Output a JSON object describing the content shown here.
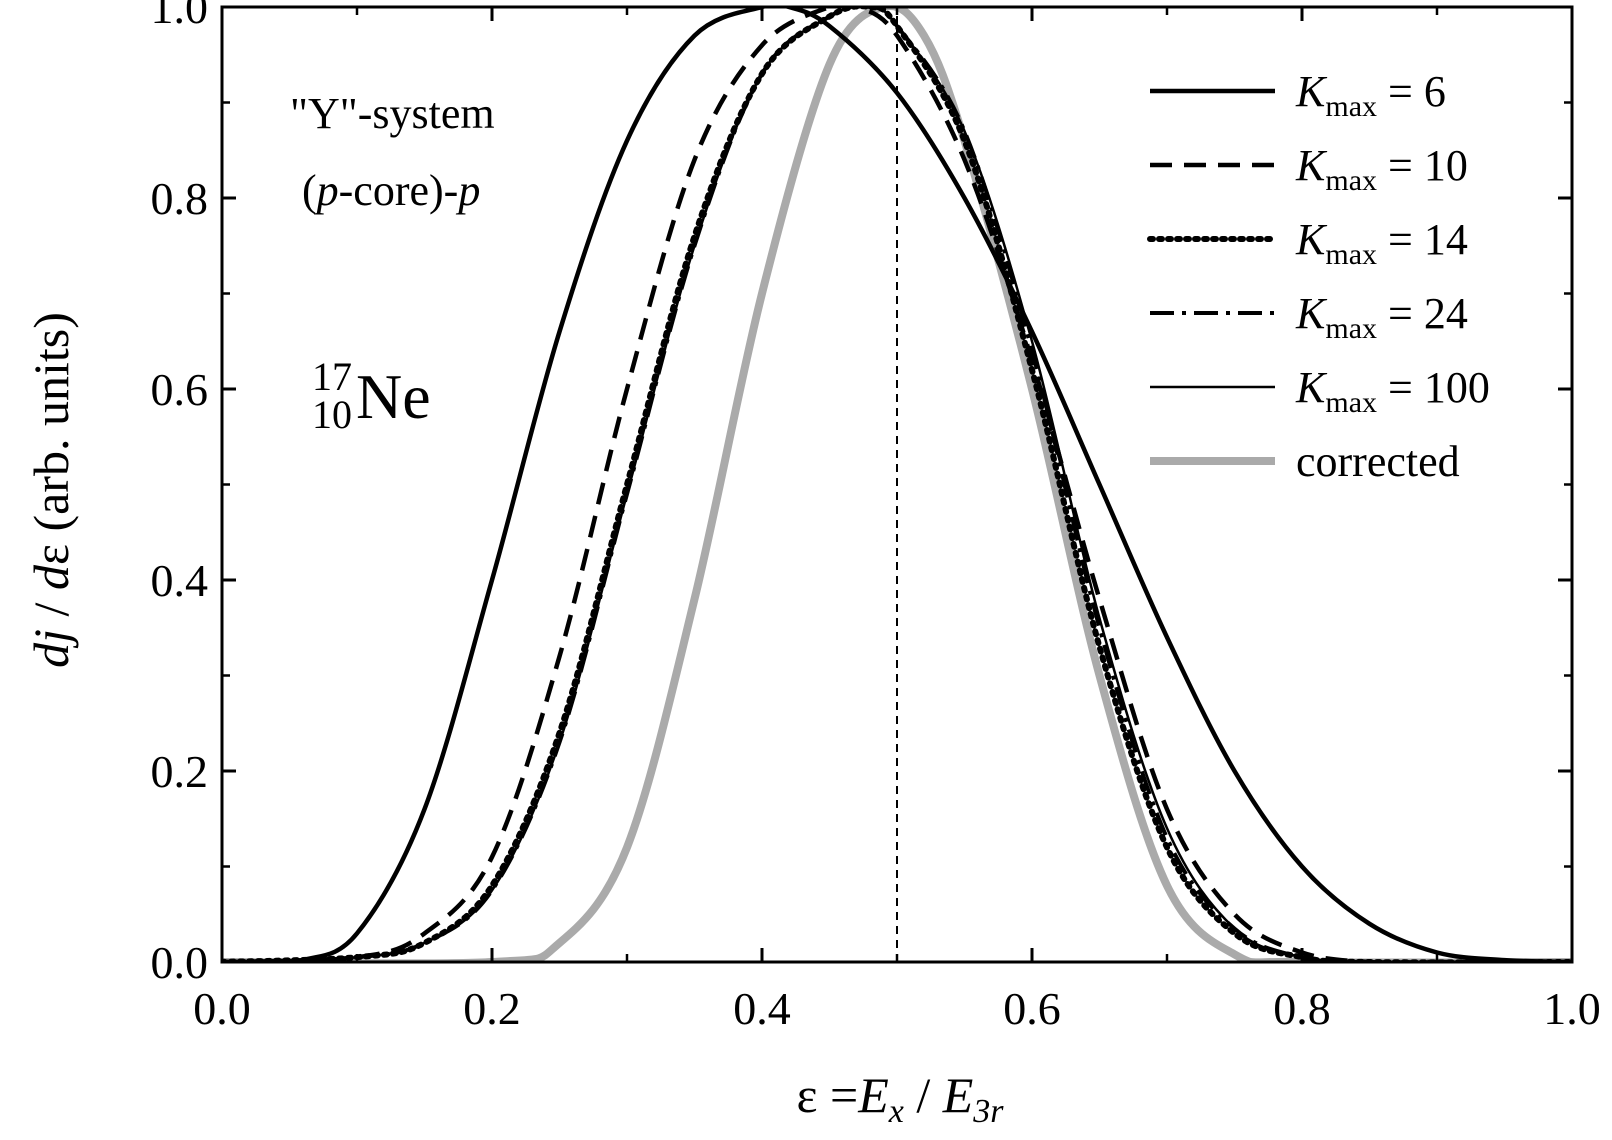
{
  "chart_data": {
    "type": "line",
    "xlabel": {
      "prefix": "ε =",
      "num_main": "E",
      "num_sub": "x",
      "sep": " / ",
      "den_main": "E",
      "den_sub": "3r"
    },
    "ylabel": {
      "d1": "d",
      "j": "j",
      "slash": " / ",
      "d2": "d",
      "eps": "ε",
      "rest": " (arb. units)"
    },
    "xlim": [
      0.0,
      1.0
    ],
    "ylim": [
      0.0,
      1.0
    ],
    "xticks": [
      "0.0",
      "0.2",
      "0.4",
      "0.6",
      "0.8",
      "1.0"
    ],
    "yticks": [
      "0.0",
      "0.2",
      "0.4",
      "0.6",
      "0.8",
      "1.0"
    ],
    "grid": false,
    "legend_position": "top-right",
    "reference_line": {
      "x": 0.5,
      "style": "dashed"
    },
    "annotations": {
      "system": "\"Y\"-system",
      "config_open": "(",
      "config_p1": "p",
      "config_mid": "-core)-",
      "config_p2": "p",
      "nucleus_mass": "17",
      "nucleus_z": "10",
      "nucleus_symbol": "Ne"
    },
    "series": [
      {
        "name": "K_max = 6",
        "label_main": "K",
        "label_sub": "max",
        "label_rest": " = 6",
        "color": "#000000",
        "style": "solid-thick",
        "x": [
          0.0,
          0.03,
          0.06,
          0.1,
          0.15,
          0.2,
          0.25,
          0.3,
          0.35,
          0.4,
          0.42,
          0.45,
          0.5,
          0.55,
          0.6,
          0.65,
          0.7,
          0.75,
          0.8,
          0.85,
          0.9,
          0.95,
          1.0
        ],
        "values": [
          0.0,
          0.0,
          0.002,
          0.03,
          0.16,
          0.4,
          0.66,
          0.86,
          0.97,
          1.0,
          1.0,
          0.98,
          0.91,
          0.8,
          0.66,
          0.5,
          0.34,
          0.2,
          0.1,
          0.04,
          0.01,
          0.002,
          0.0
        ]
      },
      {
        "name": "K_max = 10",
        "label_main": "K",
        "label_sub": "max",
        "label_rest": " = 10",
        "color": "#000000",
        "style": "dashed",
        "x": [
          0.0,
          0.1,
          0.15,
          0.2,
          0.25,
          0.3,
          0.35,
          0.4,
          0.45,
          0.47,
          0.5,
          0.55,
          0.6,
          0.65,
          0.7,
          0.75,
          0.8,
          0.85,
          0.9,
          1.0
        ],
        "values": [
          0.0,
          0.005,
          0.03,
          0.11,
          0.32,
          0.6,
          0.84,
          0.96,
          1.0,
          1.0,
          0.97,
          0.84,
          0.63,
          0.38,
          0.16,
          0.05,
          0.01,
          0.0,
          0.0,
          0.0
        ]
      },
      {
        "name": "K_max = 14",
        "label_main": "K",
        "label_sub": "max",
        "label_rest": " = 14",
        "color": "#000000",
        "style": "dotted",
        "x": [
          0.0,
          0.1,
          0.15,
          0.2,
          0.25,
          0.3,
          0.35,
          0.4,
          0.45,
          0.48,
          0.5,
          0.55,
          0.6,
          0.65,
          0.7,
          0.75,
          0.8,
          0.85,
          1.0
        ],
        "values": [
          0.0,
          0.005,
          0.02,
          0.08,
          0.24,
          0.5,
          0.76,
          0.93,
          0.99,
          1.0,
          0.98,
          0.86,
          0.62,
          0.33,
          0.12,
          0.03,
          0.005,
          0.0,
          0.0
        ]
      },
      {
        "name": "K_max = 24",
        "label_main": "K",
        "label_sub": "max",
        "label_rest": " = 24",
        "color": "#000000",
        "style": "dashdot",
        "x": [
          0.0,
          0.1,
          0.15,
          0.2,
          0.25,
          0.3,
          0.35,
          0.4,
          0.45,
          0.48,
          0.5,
          0.55,
          0.6,
          0.65,
          0.7,
          0.75,
          0.8,
          0.85,
          1.0
        ],
        "values": [
          0.0,
          0.005,
          0.02,
          0.075,
          0.23,
          0.49,
          0.75,
          0.93,
          0.99,
          1.0,
          0.98,
          0.87,
          0.64,
          0.35,
          0.13,
          0.035,
          0.005,
          0.0,
          0.0
        ]
      },
      {
        "name": "K_max = 100",
        "label_main": "K",
        "label_sub": "max",
        "label_rest": " = 100",
        "color": "#000000",
        "style": "solid-thin",
        "x": [
          0.0,
          0.1,
          0.15,
          0.2,
          0.25,
          0.3,
          0.35,
          0.4,
          0.45,
          0.48,
          0.5,
          0.55,
          0.6,
          0.65,
          0.7,
          0.75,
          0.8,
          0.85,
          1.0
        ],
        "values": [
          0.0,
          0.005,
          0.02,
          0.075,
          0.23,
          0.49,
          0.75,
          0.93,
          0.99,
          1.0,
          0.98,
          0.87,
          0.65,
          0.36,
          0.14,
          0.035,
          0.005,
          0.0,
          0.0
        ]
      },
      {
        "name": "corrected",
        "label_main": "corrected",
        "label_sub": "",
        "label_rest": "",
        "color": "#aaaaaa",
        "style": "solid-gray",
        "x": [
          0.0,
          0.2,
          0.25,
          0.3,
          0.35,
          0.4,
          0.45,
          0.49,
          0.52,
          0.55,
          0.6,
          0.65,
          0.7,
          0.75,
          0.8,
          1.0
        ],
        "values": [
          0.0,
          0.0,
          0.02,
          0.12,
          0.38,
          0.7,
          0.94,
          1.0,
          0.97,
          0.86,
          0.6,
          0.3,
          0.08,
          0.008,
          0.0,
          0.0
        ]
      }
    ]
  }
}
